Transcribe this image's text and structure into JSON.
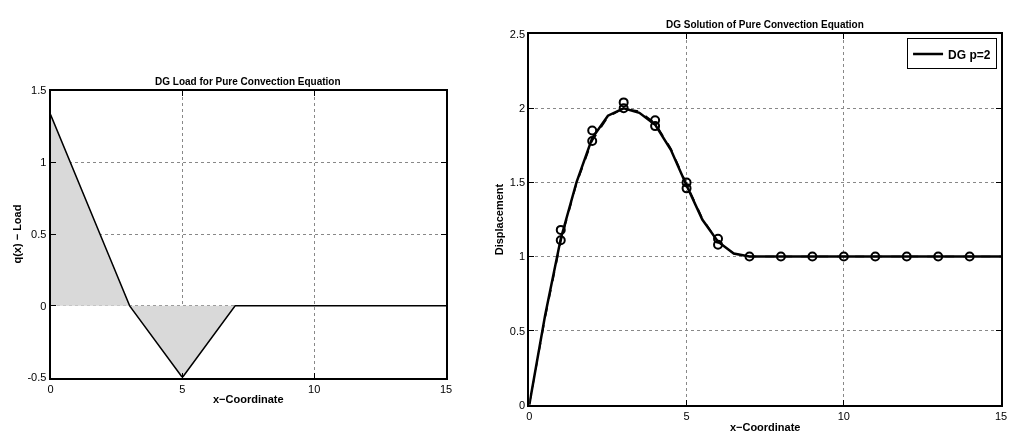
{
  "chart_data": [
    {
      "type": "area",
      "title": "DG Load for Pure Convection Equation",
      "xlabel": "x−Coordinate",
      "ylabel": "q(x) − Load",
      "x": [
        0,
        3,
        5,
        7,
        15
      ],
      "series": [
        {
          "color": "#d9d9d9",
          "values": [
            1.333,
            0,
            -0.5,
            0,
            0
          ]
        }
      ],
      "xlim": [
        0,
        15
      ],
      "xticks": [
        0,
        5,
        10,
        15
      ],
      "ylim": [
        -0.5,
        1.5
      ],
      "yticks": [
        -0.5,
        0,
        0.5,
        1,
        1.5
      ],
      "grid": true,
      "legend": false
    },
    {
      "type": "line",
      "title": "DG Solution of Pure Convection Equation",
      "xlabel": "x−Coordinate",
      "ylabel": "Displacement",
      "series": [
        {
          "name": "DG p=2",
          "color": "#000000",
          "line_style": "solid",
          "marker": "none",
          "x": [
            0,
            0.5,
            1,
            1.5,
            2,
            2.5,
            3,
            3.5,
            4,
            4.5,
            5,
            5.5,
            6,
            6.5,
            7,
            15
          ],
          "values": [
            0,
            0.6,
            1.12,
            1.5,
            1.8,
            1.95,
            2.0,
            1.97,
            1.89,
            1.72,
            1.48,
            1.25,
            1.1,
            1.02,
            1.0,
            1.0
          ]
        },
        {
          "color": "#000000",
          "line_style": "dashed",
          "marker": "none",
          "x": [
            0,
            0.5,
            1,
            1.5,
            2,
            2.5,
            3,
            3.5,
            4,
            4.5,
            5,
            5.5,
            6,
            6.5,
            7,
            15
          ],
          "values": [
            0,
            0.58,
            1.1,
            1.49,
            1.78,
            1.94,
            2.0,
            1.98,
            1.9,
            1.73,
            1.49,
            1.26,
            1.1,
            1.02,
            1.0,
            1.0
          ]
        },
        {
          "type": "scatter",
          "color": "#000000",
          "marker": "circle",
          "x": [
            1,
            1,
            2,
            2,
            3,
            3,
            4,
            4,
            5,
            5,
            6,
            6,
            7,
            8,
            9,
            10,
            11,
            12,
            13,
            14
          ],
          "values": [
            1.11,
            1.18,
            1.78,
            1.85,
            2.0,
            2.04,
            1.88,
            1.92,
            1.46,
            1.5,
            1.08,
            1.12,
            1.0,
            1.0,
            1.0,
            1.0,
            1.0,
            1.0,
            1.0,
            1.0
          ]
        }
      ],
      "xlim": [
        0,
        15
      ],
      "xticks": [
        0,
        5,
        10,
        15
      ],
      "ylim": [
        0,
        2.5
      ],
      "yticks": [
        0,
        0.5,
        1,
        1.5,
        2,
        2.5
      ],
      "grid": true,
      "legend": "top right"
    }
  ]
}
